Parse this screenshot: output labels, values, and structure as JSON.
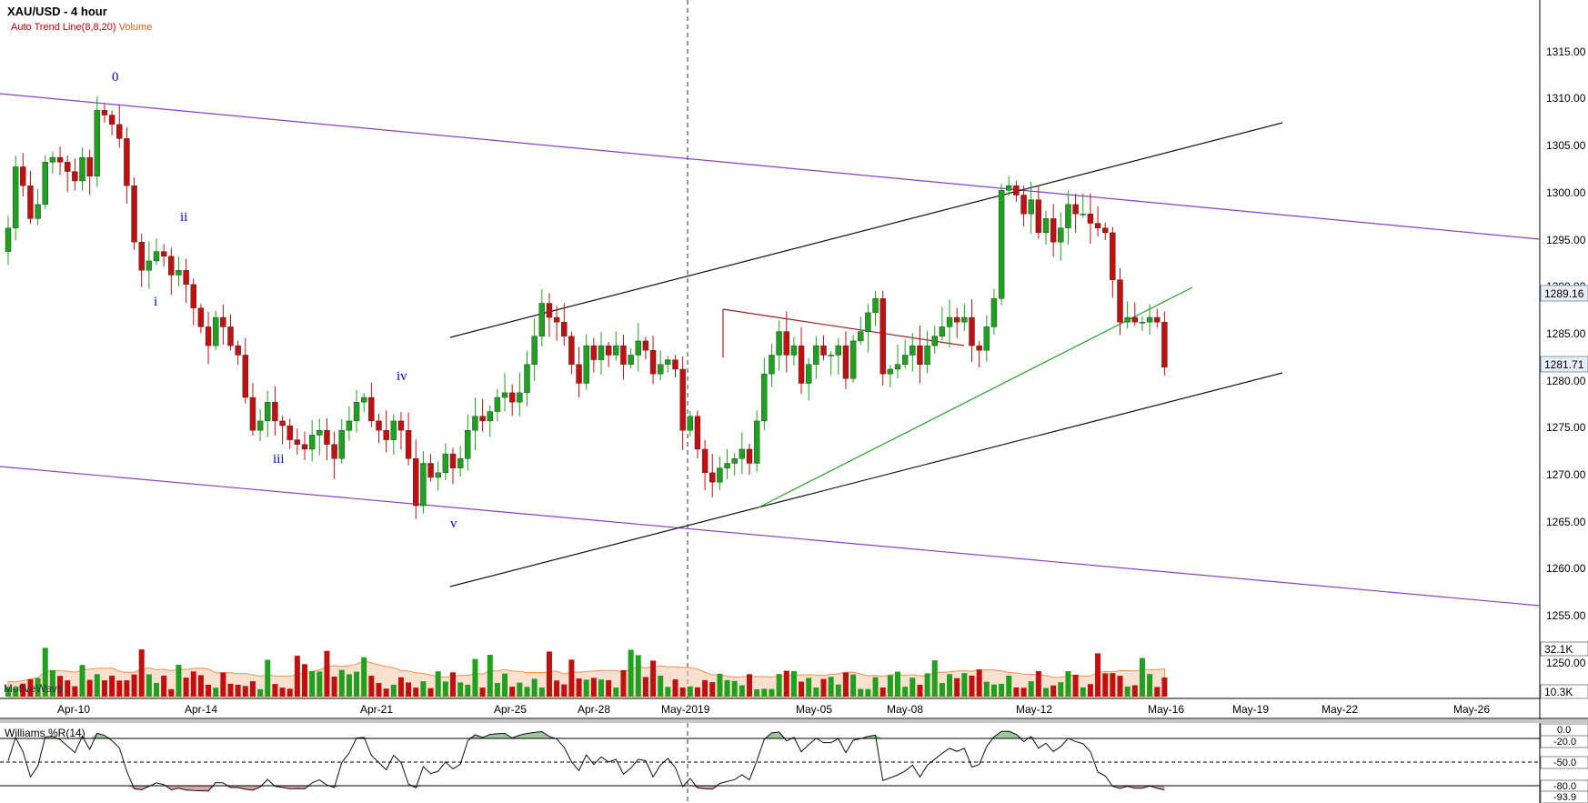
{
  "header": {
    "title": "XAU/USD - 4 hour",
    "indicator_trend": "Auto Trend Line(8,8,20)",
    "indicator_volume": "Volume"
  },
  "watermark": "MotiveWave",
  "colors": {
    "up": "#1fa01f",
    "down": "#c01010",
    "channel": "#8b3fbf",
    "trendline": "#111111",
    "green_line": "#2e9e2e",
    "red_line": "#a02020",
    "wave_label": "#0000cc",
    "volume_ma": "#f09050"
  },
  "chart_data": [
    {
      "type": "candlestick",
      "title": "XAU/USD - 4 hour",
      "y_ticks": [
        "1250.00",
        "1255.00",
        "1260.00",
        "1265.00",
        "1270.00",
        "1275.00",
        "1280.00",
        "1285.00",
        "1290.00",
        "1295.00",
        "1300.00",
        "1305.00",
        "1310.00",
        "1315.00"
      ],
      "ylim": [
        1246,
        1321
      ],
      "x_labels": [
        "Apr-10",
        "Apr-14",
        "Apr-21",
        "Apr-25",
        "Apr-28",
        "May-2019",
        "May-05",
        "May-08",
        "May-12",
        "May-16",
        "May-19",
        "May-22",
        "May-26"
      ],
      "price_labels": [
        "1289.16",
        "1281.71"
      ],
      "wave_labels": [
        "0",
        "i",
        "ii",
        "iii",
        "iv",
        "v"
      ],
      "closes": [
        1296.5,
        1303,
        1301,
        1297.5,
        1299,
        1303.5,
        1304,
        1303.5,
        1302.5,
        1301.5,
        1304,
        1302,
        1309,
        1308.5,
        1307.5,
        1306,
        1301,
        1295,
        1292,
        1293,
        1294,
        1293.5,
        1291.5,
        1292,
        1290.5,
        1288,
        1286,
        1284,
        1287,
        1286,
        1284,
        1283,
        1278.5,
        1275,
        1276,
        1278,
        1276,
        1275.5,
        1274,
        1273.5,
        1273,
        1274.5,
        1275,
        1273.5,
        1272,
        1275,
        1276,
        1278,
        1278.5,
        1276,
        1275,
        1274,
        1276,
        1275,
        1272,
        1267,
        1271.5,
        1270,
        1270.5,
        1272.5,
        1271,
        1272,
        1275,
        1276.5,
        1276,
        1277,
        1278.5,
        1279,
        1278,
        1279,
        1282,
        1285,
        1288.5,
        1287,
        1286.5,
        1285,
        1282,
        1280,
        1284,
        1282.5,
        1284,
        1283,
        1284,
        1282,
        1283,
        1284.5,
        1283.5,
        1281,
        1282,
        1282.5,
        1281.5,
        1275,
        1276.5,
        1273,
        1270.5,
        1269.5,
        1271,
        1271.5,
        1272,
        1273,
        1271.5,
        1276,
        1281,
        1283,
        1285.5,
        1283,
        1284,
        1280,
        1282,
        1284,
        1283,
        1283,
        1284,
        1280.5,
        1284.5,
        1285.5,
        1287.5,
        1289,
        1281,
        1281.5,
        1282,
        1283,
        1284,
        1282,
        1284,
        1285,
        1286,
        1287,
        1286.5,
        1287,
        1284,
        1283.5,
        1286,
        1289,
        1300.5,
        1301,
        1300,
        1298,
        1299.5,
        1296,
        1297.5,
        1295,
        1296.5,
        1299,
        1298,
        1298,
        1297,
        1296.5,
        1296,
        1291,
        1286.5,
        1287,
        1286.5,
        1286.5,
        1287,
        1286.5,
        1281.7
      ]
    },
    {
      "type": "bar",
      "title": "Volume",
      "y_ticks": [
        "32.1K",
        "10.3K"
      ]
    },
    {
      "type": "line",
      "title": "Williams %R(14)",
      "y_ticks": [
        "0.0",
        "-20.0",
        "-50.0",
        "-80.0",
        "-93.9"
      ],
      "ylim": [
        -100,
        0
      ]
    }
  ]
}
